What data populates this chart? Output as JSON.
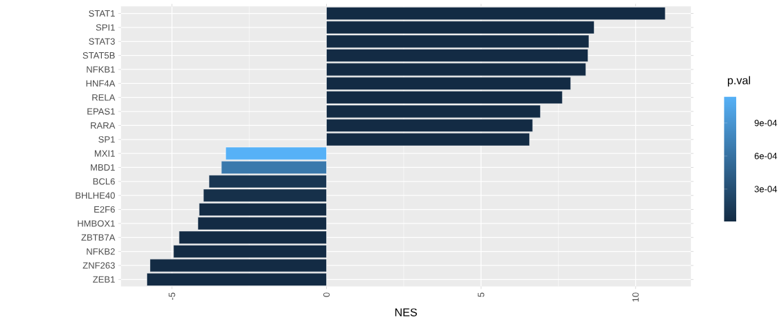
{
  "chart_data": {
    "type": "bar",
    "orientation": "horizontal",
    "categories": [
      "STAT1",
      "SPI1",
      "STAT3",
      "STAT5B",
      "NFKB1",
      "HNF4A",
      "RELA",
      "EPAS1",
      "RARA",
      "SP1",
      "MXI1",
      "MBD1",
      "BCL6",
      "BHLHE40",
      "E2F6",
      "HMBOX1",
      "ZBTB7A",
      "NFKB2",
      "ZNF263",
      "ZEB1"
    ],
    "values": [
      10.96,
      8.66,
      8.49,
      8.46,
      8.39,
      7.9,
      7.63,
      6.92,
      6.67,
      6.57,
      -3.26,
      -3.4,
      -3.8,
      -3.98,
      -4.12,
      -4.16,
      -4.77,
      -4.95,
      -5.71,
      -5.81
    ],
    "cvalues": [
      1e-05,
      1e-05,
      1e-05,
      1e-05,
      1e-05,
      1e-05,
      1e-05,
      1e-05,
      1e-05,
      1e-05,
      0.00114,
      0.00067,
      0.0001,
      5e-05,
      1e-05,
      1e-05,
      1e-05,
      1e-05,
      1e-05,
      1e-05
    ],
    "clim": [
      6e-06,
      0.00114
    ],
    "cticks": [
      {
        "value": 0.0003,
        "label": "3e-04"
      },
      {
        "value": 0.0006,
        "label": "6e-04"
      },
      {
        "value": 0.0009,
        "label": "9e-04"
      }
    ],
    "clabel": "p.val",
    "xlabel": "NES",
    "xlim": [
      -6.65,
      11.79
    ],
    "xticks": [
      -5,
      0,
      5,
      10
    ],
    "grid": true
  }
}
